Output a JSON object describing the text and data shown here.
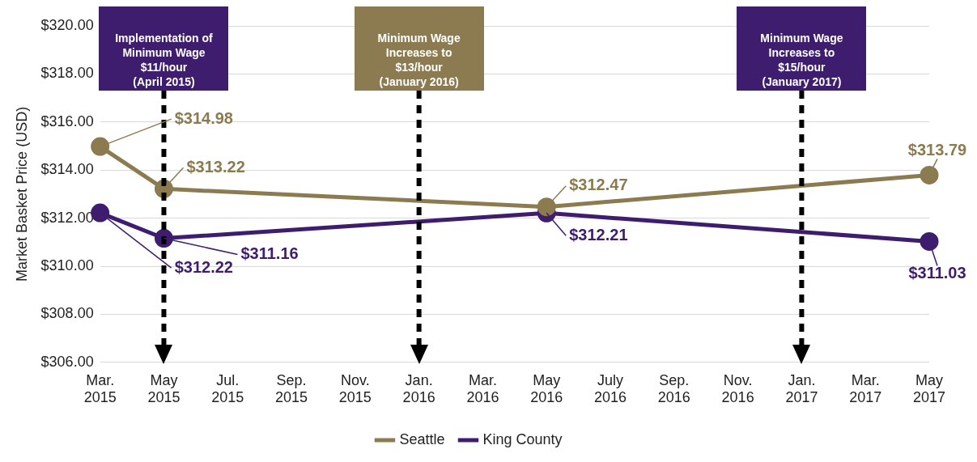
{
  "chart_data": {
    "type": "line",
    "ylabel": "Market Basket Price (USD)",
    "categories": [
      "Mar. 2015",
      "May 2015",
      "Jul. 2015",
      "Sep. 2015",
      "Nov. 2015",
      "Jan. 2016",
      "Mar. 2016",
      "May 2016",
      "July 2016",
      "Sep. 2016",
      "Nov. 2016",
      "Jan. 2017",
      "Mar. 2017",
      "May 2017"
    ],
    "series": [
      {
        "name": "Seattle",
        "color": "#8c7b50",
        "values": [
          314.98,
          313.22,
          null,
          null,
          null,
          null,
          null,
          312.47,
          null,
          null,
          null,
          null,
          null,
          313.79
        ],
        "value_labels": [
          "$314.98",
          "$313.22",
          null,
          null,
          null,
          null,
          null,
          "$312.47",
          null,
          null,
          null,
          null,
          null,
          "$313.79"
        ]
      },
      {
        "name": "King County",
        "color": "#3f1d6e",
        "values": [
          312.22,
          311.16,
          null,
          null,
          null,
          null,
          null,
          312.21,
          null,
          null,
          null,
          null,
          null,
          311.03
        ],
        "value_labels": [
          "$312.22",
          "$311.16",
          null,
          null,
          null,
          null,
          null,
          "$312.21",
          null,
          null,
          null,
          null,
          null,
          "$311.03"
        ]
      }
    ],
    "ylim": [
      306,
      320
    ],
    "yticks": [
      {
        "value": 306,
        "label": "$306.00"
      },
      {
        "value": 308,
        "label": "$308.00"
      },
      {
        "value": 310,
        "label": "$310.00"
      },
      {
        "value": 312,
        "label": "$312.00"
      },
      {
        "value": 314,
        "label": "$314.00"
      },
      {
        "value": 316,
        "label": "$316.00"
      },
      {
        "value": 318,
        "label": "$318.00"
      },
      {
        "value": 320,
        "label": "$320.00"
      }
    ],
    "ref_lines": [
      {
        "axis": "x",
        "value": "May 2015",
        "label": "Implementation of\nMinimum Wage\n$11/hour\n(April 2015)",
        "color": "#000000",
        "line_style": "dashed"
      },
      {
        "axis": "x",
        "value": "Jan. 2016",
        "label": "Minimum Wage\nIncreases to\n$13/hour\n(January 2016)",
        "color": "#000000",
        "line_style": "dashed"
      },
      {
        "axis": "x",
        "value": "Jan. 2017",
        "label": "Minimum Wage\nIncreases to\n$15/hour\n(January 2017)",
        "color": "#000000",
        "line_style": "dashed"
      }
    ],
    "grid": "y",
    "legend": "bottom",
    "marker": "circle",
    "line_style": "solid"
  }
}
